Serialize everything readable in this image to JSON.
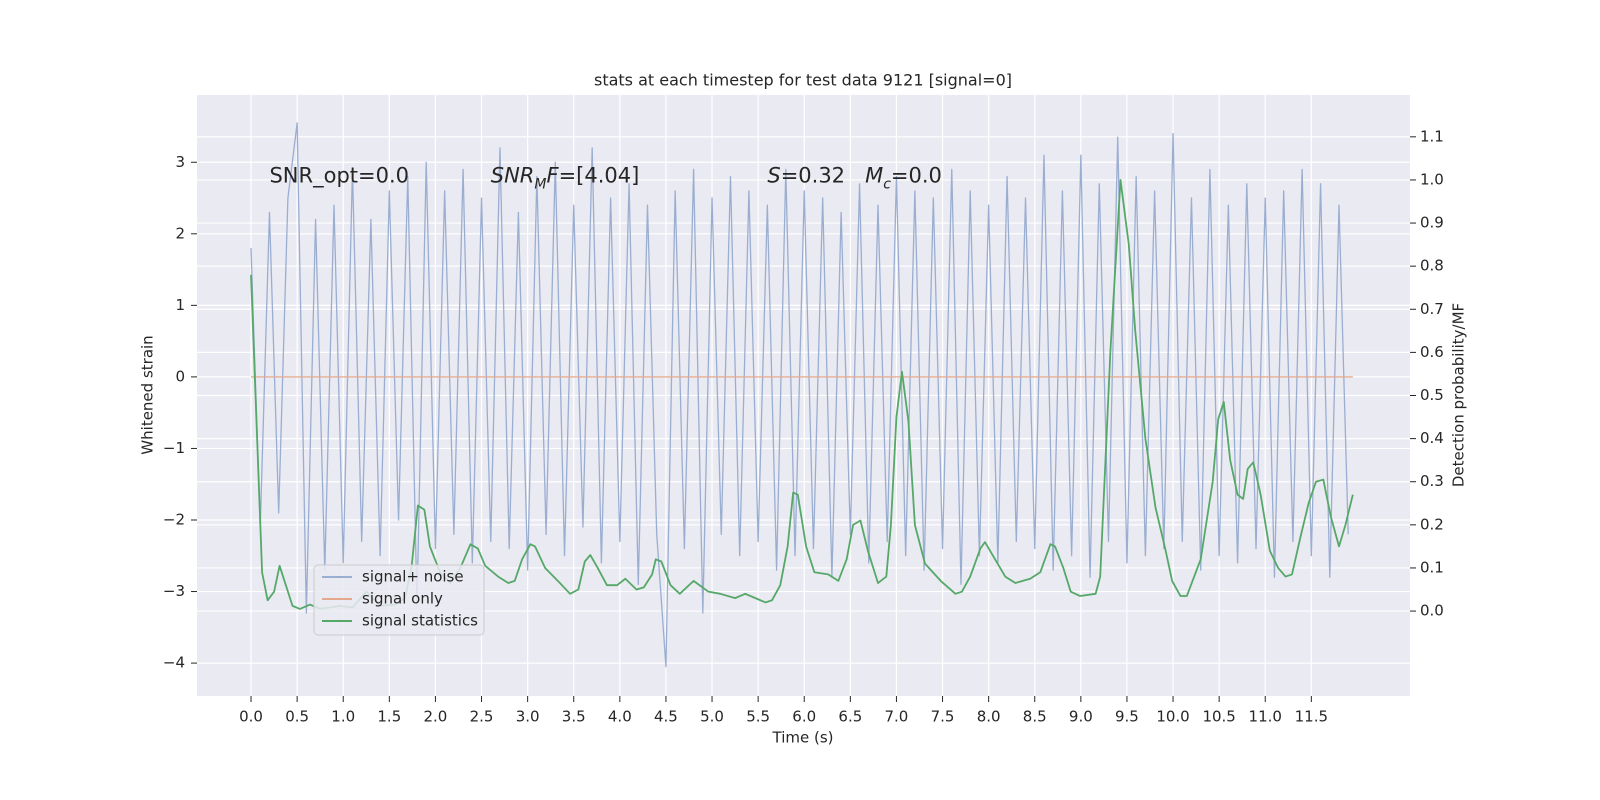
{
  "chart_data": {
    "type": "line",
    "title": "stats at each timestep for test data 9121 [signal=0]",
    "xlabel": "Time (s)",
    "ylabel": "Whitened strain",
    "y2label": "Detection probability/MF",
    "xlim": [
      -0.586,
      12.57
    ],
    "ylim": [
      -4.46,
      3.94
    ],
    "y2lim": [
      -0.197,
      1.197
    ],
    "xticks": [
      {
        "value": 0,
        "label": "0.0"
      },
      {
        "value": 0.5,
        "label": "0.5"
      },
      {
        "value": 1,
        "label": "1.0"
      },
      {
        "value": 1.5,
        "label": "1.5"
      },
      {
        "value": 2,
        "label": "2.0"
      },
      {
        "value": 2.5,
        "label": "2.5"
      },
      {
        "value": 3,
        "label": "3.0"
      },
      {
        "value": 3.5,
        "label": "3.5"
      },
      {
        "value": 4,
        "label": "4.0"
      },
      {
        "value": 4.5,
        "label": "4.5"
      },
      {
        "value": 5,
        "label": "5.0"
      },
      {
        "value": 5.5,
        "label": "5.5"
      },
      {
        "value": 6,
        "label": "6.0"
      },
      {
        "value": 6.5,
        "label": "6.5"
      },
      {
        "value": 7,
        "label": "7.0"
      },
      {
        "value": 7.5,
        "label": "7.5"
      },
      {
        "value": 8,
        "label": "8.0"
      },
      {
        "value": 8.5,
        "label": "8.5"
      },
      {
        "value": 9,
        "label": "9.0"
      },
      {
        "value": 9.5,
        "label": "9.5"
      },
      {
        "value": 10,
        "label": "10.0"
      },
      {
        "value": 10.5,
        "label": "10.5"
      },
      {
        "value": 11,
        "label": "11.0"
      },
      {
        "value": 11.5,
        "label": "11.5"
      }
    ],
    "yticks": [
      {
        "value": -4,
        "label": "−4"
      },
      {
        "value": -3,
        "label": "−3"
      },
      {
        "value": -2,
        "label": "−2"
      },
      {
        "value": -1,
        "label": "−1"
      },
      0,
      1,
      2,
      3
    ],
    "y2ticks": [
      {
        "value": 0,
        "label": "0.0"
      },
      {
        "value": 0.1,
        "label": "0.1"
      },
      {
        "value": 0.2,
        "label": "0.2"
      },
      {
        "value": 0.3,
        "label": "0.3"
      },
      {
        "value": 0.4,
        "label": "0.4"
      },
      {
        "value": 0.5,
        "label": "0.5"
      },
      {
        "value": 0.6,
        "label": "0.6"
      },
      {
        "value": 0.7,
        "label": "0.7"
      },
      {
        "value": 0.8,
        "label": "0.8"
      },
      {
        "value": 0.9,
        "label": "0.9"
      },
      {
        "value": 1,
        "label": "1.0"
      },
      {
        "value": 1.1,
        "label": "1.1"
      }
    ],
    "grid": true,
    "legend": "lower left",
    "annotations": [
      {
        "x": 0.2,
        "y": 2.8,
        "parts": [
          {
            "text": "SNR_opt=0.0"
          }
        ]
      },
      {
        "x": 2.6,
        "y": 2.8,
        "parts": [
          {
            "text": "SNR",
            "italic": true
          },
          {
            "text": "M",
            "italic": true,
            "sub": true
          },
          {
            "text": "F",
            "italic": true
          },
          {
            "text": "=[4.04]"
          }
        ]
      },
      {
        "x": 5.6,
        "y": 2.8,
        "parts": [
          {
            "text": "S",
            "italic": true
          },
          {
            "text": "=0.32   "
          },
          {
            "text": "M",
            "italic": true
          },
          {
            "text": "c",
            "italic": true,
            "sub": true
          },
          {
            "text": "=0.0"
          }
        ]
      }
    ],
    "series": [
      {
        "name": "signal+ noise",
        "color": "#9aaed1",
        "x": [
          0,
          0.1,
          0.2,
          0.3,
          0.4,
          0.5,
          0.6,
          0.7,
          0.8,
          0.9,
          1,
          1.1,
          1.2,
          1.3,
          1.4,
          1.5,
          1.6,
          1.7,
          1.8,
          1.9,
          2,
          2.1,
          2.2,
          2.3,
          2.4,
          2.5,
          2.6,
          2.7,
          2.8,
          2.9,
          3,
          3.1,
          3.2,
          3.3,
          3.4,
          3.5,
          3.6,
          3.7,
          3.8,
          3.9,
          4,
          4.1,
          4.2,
          4.3,
          4.4,
          4.5,
          4.6,
          4.7,
          4.8,
          4.9,
          5,
          5.1,
          5.2,
          5.3,
          5.4,
          5.5,
          5.6,
          5.7,
          5.8,
          5.9,
          6,
          6.1,
          6.2,
          6.3,
          6.4,
          6.5,
          6.6,
          6.7,
          6.8,
          6.9,
          7,
          7.1,
          7.2,
          7.3,
          7.4,
          7.5,
          7.6,
          7.7,
          7.8,
          7.9,
          8,
          8.1,
          8.2,
          8.3,
          8.4,
          8.5,
          8.6,
          8.7,
          8.8,
          8.9,
          9,
          9.1,
          9.2,
          9.3,
          9.4,
          9.5,
          9.6,
          9.7,
          9.8,
          9.9,
          10,
          10.1,
          10.2,
          10.3,
          10.4,
          10.5,
          10.6,
          10.7,
          10.8,
          10.9,
          11,
          11.1,
          11.2,
          11.3,
          11.4,
          11.5,
          11.6,
          11.7,
          11.8,
          11.9
        ],
        "values": [
          1.8,
          -2.1,
          2.3,
          -1.9,
          2.5,
          3.55,
          -3.3,
          2.2,
          -2.7,
          2.4,
          -2.6,
          2.9,
          -2.3,
          2.2,
          -2.5,
          2.6,
          -2.0,
          2.8,
          -3.2,
          3.0,
          -2.4,
          2.6,
          -2.2,
          2.9,
          -2.6,
          2.5,
          -2.3,
          3.2,
          -2.4,
          2.3,
          -2.7,
          2.8,
          -2.2,
          3.0,
          -2.5,
          2.4,
          -2.1,
          3.2,
          -2.6,
          2.5,
          -2.3,
          2.7,
          -2.9,
          2.4,
          -2.2,
          -4.05,
          2.6,
          -2.4,
          2.9,
          -3.3,
          2.5,
          -2.2,
          2.8,
          -2.5,
          2.6,
          -2.3,
          2.4,
          -2.7,
          2.9,
          -2.5,
          2.6,
          -2.4,
          2.5,
          -2.8,
          2.3,
          -2.2,
          2.7,
          -2.6,
          2.4,
          -2.3,
          2.8,
          -2.5,
          2.6,
          -2.7,
          2.5,
          -2.4,
          2.9,
          -2.9,
          2.6,
          -2.5,
          2.4,
          -2.6,
          2.8,
          -2.3,
          2.5,
          -2.4,
          3.1,
          -2.7,
          2.6,
          -2.5,
          3.1,
          -2.8,
          2.7,
          -2.3,
          3.35,
          -2.6,
          2.8,
          -2.5,
          2.6,
          -2.4,
          3.4,
          -2.3,
          2.5,
          -2.7,
          2.9,
          -2.5,
          2.4,
          -2.6,
          2.7,
          -2.4,
          2.5,
          -2.8,
          2.6,
          -2.3,
          2.9,
          -2.5,
          2.7,
          -2.8,
          2.4,
          -2.2
        ]
      },
      {
        "name": "signal only",
        "color": "#e6a88c",
        "x": [
          0,
          11.95
        ],
        "values": [
          0,
          0
        ]
      },
      {
        "name": "signal statistics",
        "color": "#55a868",
        "axis": "y2",
        "x": [
          0,
          0.12,
          0.18,
          0.25,
          0.31,
          0.45,
          0.53,
          0.64,
          0.75,
          0.97,
          1.1,
          1.25,
          1.4,
          1.56,
          1.67,
          1.74,
          1.81,
          1.88,
          1.94,
          2.05,
          2.16,
          2.27,
          2.38,
          2.46,
          2.54,
          2.68,
          2.79,
          2.86,
          2.94,
          3.03,
          3.08,
          3.19,
          3.35,
          3.46,
          3.55,
          3.62,
          3.68,
          3.76,
          3.86,
          3.97,
          4.06,
          4.18,
          4.26,
          4.35,
          4.39,
          4.45,
          4.55,
          4.65,
          4.8,
          4.96,
          5.09,
          5.25,
          5.36,
          5.47,
          5.58,
          5.65,
          5.74,
          5.82,
          5.88,
          5.93,
          6.02,
          6.11,
          6.26,
          6.37,
          6.46,
          6.53,
          6.61,
          6.69,
          6.8,
          6.89,
          6.94,
          7,
          7.06,
          7.13,
          7.2,
          7.31,
          7.48,
          7.64,
          7.71,
          7.8,
          7.91,
          7.96,
          8.07,
          8.18,
          8.29,
          8.45,
          8.56,
          8.67,
          8.72,
          8.81,
          8.89,
          8.99,
          9.16,
          9.21,
          9.32,
          9.43,
          9.52,
          9.59,
          9.7,
          9.81,
          9.92,
          9.99,
          10.08,
          10.15,
          10.3,
          10.43,
          10.49,
          10.55,
          10.62,
          10.7,
          10.76,
          10.81,
          10.87,
          10.95,
          11.05,
          11.14,
          11.22,
          11.29,
          11.38,
          11.47,
          11.55,
          11.63,
          11.71,
          11.8,
          11.87,
          11.95
        ],
        "values": [
          0.78,
          0.09,
          0.025,
          0.045,
          0.105,
          0.012,
          0.005,
          0.015,
          0.005,
          0.012,
          0.008,
          0.045,
          0.012,
          0.015,
          0.03,
          0.1,
          0.245,
          0.235,
          0.15,
          0.09,
          0.065,
          0.1,
          0.155,
          0.145,
          0.105,
          0.08,
          0.065,
          0.07,
          0.12,
          0.155,
          0.15,
          0.1,
          0.065,
          0.04,
          0.05,
          0.115,
          0.13,
          0.1,
          0.06,
          0.06,
          0.075,
          0.05,
          0.055,
          0.085,
          0.12,
          0.115,
          0.06,
          0.04,
          0.07,
          0.045,
          0.04,
          0.03,
          0.04,
          0.03,
          0.02,
          0.025,
          0.06,
          0.15,
          0.275,
          0.27,
          0.15,
          0.09,
          0.085,
          0.07,
          0.12,
          0.2,
          0.21,
          0.14,
          0.065,
          0.08,
          0.2,
          0.45,
          0.555,
          0.44,
          0.2,
          0.11,
          0.07,
          0.04,
          0.045,
          0.08,
          0.145,
          0.16,
          0.12,
          0.08,
          0.065,
          0.075,
          0.09,
          0.155,
          0.15,
          0.1,
          0.045,
          0.035,
          0.04,
          0.08,
          0.6,
          1.0,
          0.85,
          0.65,
          0.4,
          0.24,
          0.14,
          0.07,
          0.035,
          0.035,
          0.12,
          0.3,
          0.445,
          0.485,
          0.35,
          0.27,
          0.26,
          0.33,
          0.345,
          0.27,
          0.14,
          0.1,
          0.08,
          0.085,
          0.17,
          0.25,
          0.3,
          0.305,
          0.22,
          0.15,
          0.2,
          0.27
        ]
      }
    ]
  }
}
